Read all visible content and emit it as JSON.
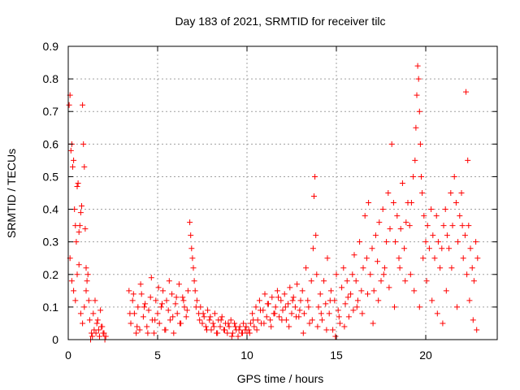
{
  "chart_data": {
    "type": "scatter",
    "title": "Day 183 of 2021, SRMTID for receiver tilc",
    "xlabel": "GPS time / hours",
    "ylabel": "SRMTID / TECUs",
    "xlim": [
      0,
      24
    ],
    "ylim": [
      0,
      0.9
    ],
    "xticks": [
      0,
      5,
      10,
      15,
      20
    ],
    "xtick_labels": [
      "0",
      "5",
      "10",
      "15",
      "20"
    ],
    "yticks": [
      0,
      0.1,
      0.2,
      0.3,
      0.4,
      0.5,
      0.6,
      0.7,
      0.8,
      0.9
    ],
    "ytick_labels": [
      "0",
      "0.1",
      "0.2",
      "0.3",
      "0.4",
      "0.5",
      "0.6",
      "0.7",
      "0.8",
      "0.9"
    ],
    "grid": true,
    "marker": "+",
    "color": "#ff0000",
    "series": [
      {
        "name": "SRMTID",
        "x": [
          0.05,
          0.1,
          0.15,
          0.2,
          0.25,
          0.3,
          0.35,
          0.4,
          0.45,
          0.5,
          0.55,
          0.6,
          0.65,
          0.7,
          0.75,
          0.8,
          0.85,
          0.9,
          0.95,
          1.0,
          0.1,
          0.2,
          0.3,
          0.4,
          0.5,
          0.6,
          0.7,
          0.8,
          0.9,
          1.0,
          1.05,
          1.1,
          1.15,
          1.2,
          1.3,
          1.4,
          1.5,
          1.6,
          1.7,
          1.8,
          1.9,
          2.0,
          2.1,
          1.25,
          1.35,
          1.45,
          1.55,
          1.65,
          1.75,
          1.85,
          1.95,
          2.05,
          3.4,
          3.5,
          3.6,
          3.7,
          3.8,
          3.9,
          4.0,
          4.1,
          4.2,
          4.3,
          4.4,
          4.5,
          4.6,
          4.7,
          4.8,
          4.9,
          5.0,
          5.1,
          5.2,
          5.3,
          5.4,
          5.5,
          5.6,
          5.7,
          5.8,
          5.9,
          6.0,
          6.1,
          6.2,
          6.3,
          6.4,
          6.5,
          6.6,
          6.7,
          3.45,
          3.65,
          3.85,
          4.05,
          4.25,
          4.45,
          4.65,
          4.85,
          5.05,
          5.25,
          5.45,
          5.65,
          5.85,
          6.05,
          6.25,
          6.45,
          6.65,
          6.8,
          6.85,
          6.9,
          6.95,
          7.0,
          7.05,
          7.1,
          7.2,
          7.3,
          7.4,
          7.5,
          7.6,
          7.7,
          7.8,
          7.9,
          8.0,
          8.1,
          8.2,
          8.3,
          8.4,
          8.5,
          8.6,
          8.7,
          8.8,
          8.9,
          9.0,
          9.1,
          9.2,
          9.3,
          9.4,
          9.5,
          9.6,
          9.7,
          9.8,
          9.9,
          10.0,
          7.15,
          7.35,
          7.55,
          7.75,
          7.95,
          8.15,
          8.35,
          8.55,
          8.75,
          8.95,
          9.15,
          9.35,
          9.55,
          9.75,
          9.95,
          10.1,
          10.2,
          10.3,
          10.4,
          10.5,
          10.6,
          10.7,
          10.8,
          10.9,
          11.0,
          11.1,
          11.2,
          11.3,
          11.4,
          11.5,
          11.6,
          11.7,
          11.8,
          11.9,
          12.0,
          12.1,
          12.2,
          12.3,
          12.4,
          12.5,
          12.6,
          12.7,
          12.8,
          12.9,
          13.0,
          10.15,
          10.35,
          10.55,
          10.75,
          10.95,
          11.15,
          11.35,
          11.55,
          11.75,
          11.95,
          12.15,
          12.35,
          12.55,
          12.75,
          12.95,
          13.1,
          13.2,
          13.3,
          13.4,
          13.5,
          13.6,
          13.7,
          13.75,
          13.8,
          13.85,
          13.9,
          14.0,
          14.1,
          14.2,
          14.3,
          14.4,
          14.5,
          14.6,
          14.7,
          14.8,
          14.9,
          15.0,
          15.1,
          15.2,
          15.3,
          15.4,
          15.5,
          15.6,
          15.7,
          15.8,
          15.9,
          16.0,
          13.15,
          13.45,
          13.65,
          13.95,
          14.15,
          14.45,
          14.65,
          14.95,
          15.15,
          15.45,
          15.65,
          15.95,
          16.1,
          16.2,
          16.3,
          16.4,
          16.5,
          16.6,
          16.7,
          16.8,
          16.9,
          17.0,
          17.1,
          17.2,
          17.3,
          17.4,
          17.5,
          17.6,
          17.7,
          17.8,
          17.9,
          18.0,
          18.1,
          18.2,
          18.3,
          18.4,
          18.5,
          18.6,
          18.7,
          18.8,
          18.9,
          19.0,
          16.15,
          16.45,
          16.75,
          17.05,
          17.35,
          17.65,
          17.95,
          18.25,
          18.55,
          18.85,
          19.1,
          19.2,
          19.3,
          19.4,
          19.45,
          19.5,
          19.55,
          19.6,
          19.65,
          19.7,
          19.75,
          19.8,
          19.9,
          20.0,
          20.1,
          20.2,
          20.3,
          20.4,
          20.5,
          20.6,
          20.7,
          20.8,
          20.9,
          21.0,
          19.15,
          19.35,
          19.65,
          19.85,
          20.05,
          20.35,
          20.65,
          20.95,
          21.1,
          21.2,
          21.3,
          21.4,
          21.5,
          21.6,
          21.7,
          21.8,
          21.9,
          22.0,
          22.1,
          22.2,
          22.3,
          22.4,
          22.5,
          22.6,
          22.7,
          22.8,
          22.9,
          21.15,
          21.45,
          21.75,
          22.05,
          22.25,
          22.35,
          22.45,
          22.65,
          22.85
        ],
        "y": [
          0.72,
          0.75,
          0.58,
          0.6,
          0.53,
          0.55,
          0.4,
          0.35,
          0.3,
          0.47,
          0.48,
          0.33,
          0.35,
          0.39,
          0.41,
          0.72,
          0.6,
          0.53,
          0.34,
          0.22,
          0.25,
          0.18,
          0.15,
          0.12,
          0.2,
          0.23,
          0.08,
          0.05,
          0.1,
          0.15,
          0.18,
          0.2,
          0.12,
          0.06,
          0.02,
          0.08,
          0.12,
          0.05,
          0.03,
          0.09,
          0.04,
          0.02,
          0.01,
          0.0,
          0.01,
          0.03,
          0.02,
          0.06,
          0.01,
          0.04,
          0.02,
          0.0,
          0.15,
          0.05,
          0.12,
          0.08,
          0.02,
          0.1,
          0.03,
          0.14,
          0.07,
          0.11,
          0.04,
          0.09,
          0.13,
          0.06,
          0.02,
          0.12,
          0.08,
          0.05,
          0.1,
          0.15,
          0.03,
          0.12,
          0.09,
          0.06,
          0.14,
          0.02,
          0.11,
          0.08,
          0.17,
          0.05,
          0.13,
          0.1,
          0.07,
          0.15,
          0.08,
          0.14,
          0.04,
          0.17,
          0.1,
          0.02,
          0.19,
          0.06,
          0.16,
          0.11,
          0.03,
          0.18,
          0.07,
          0.13,
          0.05,
          0.12,
          0.09,
          0.36,
          0.32,
          0.28,
          0.25,
          0.22,
          0.18,
          0.15,
          0.12,
          0.08,
          0.1,
          0.05,
          0.07,
          0.04,
          0.09,
          0.06,
          0.03,
          0.05,
          0.08,
          0.02,
          0.06,
          0.04,
          0.07,
          0.03,
          0.05,
          0.02,
          0.04,
          0.06,
          0.02,
          0.05,
          0.03,
          0.01,
          0.04,
          0.02,
          0.05,
          0.03,
          0.02,
          0.1,
          0.06,
          0.08,
          0.03,
          0.07,
          0.04,
          0.02,
          0.06,
          0.03,
          0.05,
          0.01,
          0.04,
          0.03,
          0.02,
          0.04,
          0.03,
          0.05,
          0.08,
          0.04,
          0.1,
          0.06,
          0.12,
          0.05,
          0.09,
          0.14,
          0.07,
          0.11,
          0.06,
          0.13,
          0.08,
          0.1,
          0.15,
          0.07,
          0.12,
          0.09,
          0.14,
          0.06,
          0.11,
          0.16,
          0.08,
          0.13,
          0.1,
          0.17,
          0.07,
          0.12,
          0.02,
          0.06,
          0.03,
          0.09,
          0.05,
          0.11,
          0.04,
          0.08,
          0.13,
          0.06,
          0.1,
          0.04,
          0.12,
          0.07,
          0.09,
          0.15,
          0.08,
          0.22,
          0.12,
          0.05,
          0.18,
          0.28,
          0.44,
          0.5,
          0.32,
          0.2,
          0.1,
          0.14,
          0.06,
          0.18,
          0.11,
          0.25,
          0.08,
          0.15,
          0.03,
          0.12,
          0.2,
          0.09,
          0.05,
          0.16,
          0.22,
          0.11,
          0.18,
          0.07,
          0.14,
          0.2,
          0.26,
          0.02,
          0.1,
          0.06,
          0.04,
          0.08,
          0.03,
          0.12,
          0.01,
          0.07,
          0.04,
          0.13,
          0.09,
          0.18,
          0.12,
          0.3,
          0.15,
          0.22,
          0.38,
          0.25,
          0.42,
          0.2,
          0.28,
          0.15,
          0.32,
          0.24,
          0.36,
          0.18,
          0.4,
          0.22,
          0.3,
          0.45,
          0.34,
          0.6,
          0.42,
          0.3,
          0.38,
          0.25,
          0.34,
          0.48,
          0.28,
          0.36,
          0.42,
          0.1,
          0.08,
          0.14,
          0.05,
          0.12,
          0.2,
          0.16,
          0.1,
          0.22,
          0.18,
          0.35,
          0.42,
          0.5,
          0.55,
          0.65,
          0.75,
          0.84,
          0.8,
          0.7,
          0.6,
          0.5,
          0.45,
          0.38,
          0.3,
          0.35,
          0.28,
          0.4,
          0.32,
          0.25,
          0.38,
          0.3,
          0.22,
          0.28,
          0.35,
          0.2,
          0.15,
          0.1,
          0.25,
          0.18,
          0.12,
          0.08,
          0.05,
          0.4,
          0.32,
          0.28,
          0.45,
          0.35,
          0.5,
          0.42,
          0.3,
          0.38,
          0.45,
          0.25,
          0.32,
          0.2,
          0.35,
          0.28,
          0.22,
          0.18,
          0.3,
          0.25,
          0.15,
          0.22,
          0.1,
          0.35,
          0.76,
          0.55,
          0.12,
          0.06,
          0.03
        ]
      }
    ]
  }
}
